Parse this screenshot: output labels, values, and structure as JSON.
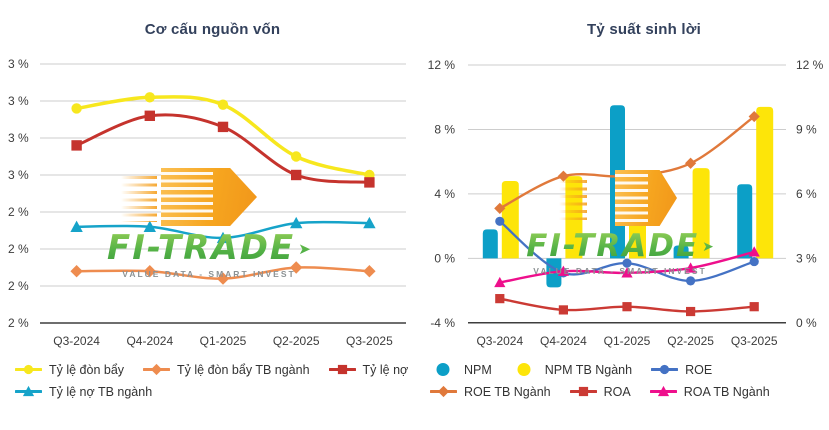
{
  "page": {
    "background": "#FFFFFF"
  },
  "watermark": {
    "brand": "FI-TRADE",
    "tagline": "VALUE DATA - SMART INVEST",
    "brand_color": "#55B347",
    "hex_color": "#F6A51F"
  },
  "chart_data": [
    {
      "type": "line",
      "title": "Cơ cấu nguồn vốn",
      "categories": [
        "Q3-2024",
        "Q4-2024",
        "Q1-2025",
        "Q2-2025",
        "Q3-2025"
      ],
      "y_axis": {
        "tick_labels": [
          "3 %",
          "3 %",
          "3 %",
          "3 %",
          "2 %",
          "2 %",
          "2 %",
          "2 %"
        ],
        "tick_values": [
          2.8,
          2.7,
          2.6,
          2.5,
          2.4,
          2.3,
          2.2,
          2.1
        ],
        "ylim": [
          2.1,
          2.8
        ]
      },
      "grid": true,
      "legend_position": "bottom",
      "series": [
        {
          "name": "Tỷ lệ đòn bẩy",
          "type": "line",
          "color": "#F7E71E",
          "marker": "circle",
          "values": [
            2.68,
            2.71,
            2.69,
            2.55,
            2.5
          ]
        },
        {
          "name": "Tỷ lệ đòn bẩy TB ngành",
          "type": "line",
          "color": "#EE8C4F",
          "marker": "diamond",
          "values": [
            2.24,
            2.24,
            2.22,
            2.25,
            2.24
          ]
        },
        {
          "name": "Tỷ lệ nợ",
          "type": "line",
          "color": "#C5332D",
          "marker": "square",
          "values": [
            2.58,
            2.66,
            2.63,
            2.5,
            2.48
          ]
        },
        {
          "name": "Tỷ lệ nợ TB ngành",
          "type": "line",
          "color": "#16A3C9",
          "marker": "triangle",
          "values": [
            2.36,
            2.36,
            2.33,
            2.37,
            2.37
          ]
        }
      ]
    },
    {
      "type": "combo",
      "title": "Tỷ suất sinh lời",
      "categories": [
        "Q3-2024",
        "Q4-2024",
        "Q1-2025",
        "Q2-2025",
        "Q3-2025"
      ],
      "y_axis": {
        "tick_labels": [
          "12 %",
          "8 %",
          "4 %",
          "0 %",
          "-4 %"
        ],
        "tick_values": [
          12,
          8,
          4,
          0,
          -4
        ],
        "ylim": [
          -4,
          12
        ]
      },
      "y_axis_right": {
        "tick_labels": [
          "12 %",
          "9 %",
          "6 %",
          "3 %",
          "0 %"
        ],
        "tick_values": [
          12,
          9,
          6,
          3,
          0
        ],
        "ylim": [
          0,
          12
        ]
      },
      "grid": true,
      "legend_position": "bottom",
      "series": [
        {
          "name": "NPM",
          "type": "bar",
          "color": "#0C9FC7",
          "values": [
            1.8,
            -1.8,
            9.5,
            0.8,
            4.6
          ]
        },
        {
          "name": "NPM TB Ngành",
          "type": "bar",
          "color": "#FDE509",
          "values": [
            4.8,
            5.1,
            4.4,
            5.6,
            9.4
          ]
        },
        {
          "name": "ROE",
          "type": "line",
          "color": "#4472C4",
          "marker": "circle",
          "values": [
            2.3,
            -0.9,
            -0.3,
            -1.4,
            -0.2
          ]
        },
        {
          "name": "ROE TB Ngành",
          "type": "line",
          "color": "#E0793B",
          "marker": "diamond",
          "values": [
            3.1,
            5.1,
            5.1,
            5.9,
            8.8
          ]
        },
        {
          "name": "ROA",
          "type": "line",
          "color": "#CB3A34",
          "marker": "square",
          "values": [
            -2.5,
            -3.2,
            -3.0,
            -3.3,
            -3.0
          ]
        },
        {
          "name": "ROA TB Ngành",
          "type": "line",
          "color": "#EE0F8C",
          "marker": "triangle",
          "values": [
            -1.5,
            -0.8,
            -0.9,
            -0.6,
            0.4
          ]
        }
      ]
    }
  ]
}
